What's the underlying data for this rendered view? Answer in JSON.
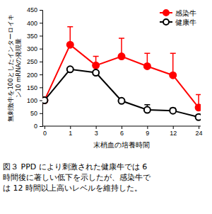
{
  "chart_data": {
    "type": "line",
    "x_label": "末梢血の培養時間",
    "y_label": [
      "無刺激牛を100としたインターロイキ",
      "ン10 mRNAの発現量"
    ],
    "caption": [
      "図３ PPD により刺激された健康牛では 6",
      "時間後に著しい低下を示したが、感染牛で",
      "は 12 時間以上高いレベルを維持した。"
    ],
    "categories": [
      "0",
      "1",
      "3",
      "6",
      "9",
      "12",
      "24"
    ],
    "series": [
      {
        "name": "感染牛",
        "color": "#ff0000",
        "marker": "circle",
        "values": [
          100,
          315,
          235,
          270,
          232,
          197,
          72
        ],
        "errors": [
          0,
          70,
          35,
          70,
          50,
          85,
          50
        ]
      },
      {
        "name": "健康牛",
        "color": "#000000",
        "marker": "circle-open",
        "values": [
          100,
          220,
          207,
          98,
          63,
          60,
          35
        ],
        "errors": [
          0,
          0,
          0,
          5,
          20,
          10,
          5
        ]
      }
    ],
    "ylim": [
      0,
      450
    ],
    "yticks": [
      0,
      50,
      100,
      150,
      200,
      250,
      300,
      350,
      400,
      450
    ],
    "legend": "upper right",
    "grid": false
  }
}
